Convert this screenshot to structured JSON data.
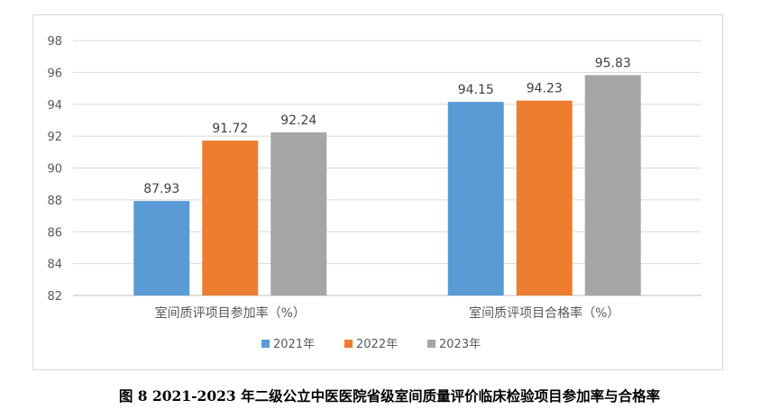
{
  "chart_data": {
    "type": "bar",
    "categories": [
      "室间质评项目参加率（%）",
      "室间质评项目合格率（%）"
    ],
    "series": [
      {
        "name": "2021年",
        "color": "#5b9bd5",
        "values": [
          87.93,
          94.15
        ],
        "labels": [
          "87.93",
          "94.15"
        ]
      },
      {
        "name": "2022年",
        "color": "#ed7d31",
        "values": [
          91.72,
          94.23
        ],
        "labels": [
          "91.72",
          "94.23"
        ]
      },
      {
        "name": "2023年",
        "color": "#a5a5a5",
        "values": [
          92.24,
          95.83
        ],
        "labels": [
          "92.24",
          "95.83"
        ]
      }
    ],
    "ylim": [
      82,
      98
    ],
    "yticks": [
      82,
      84,
      86,
      88,
      90,
      92,
      94,
      96,
      98
    ],
    "grid": true,
    "legend": "bottom"
  },
  "caption": "图 8 2021-2023 年二级公立中医医院省级室间质量评价临床检验项目参加率与合格率"
}
